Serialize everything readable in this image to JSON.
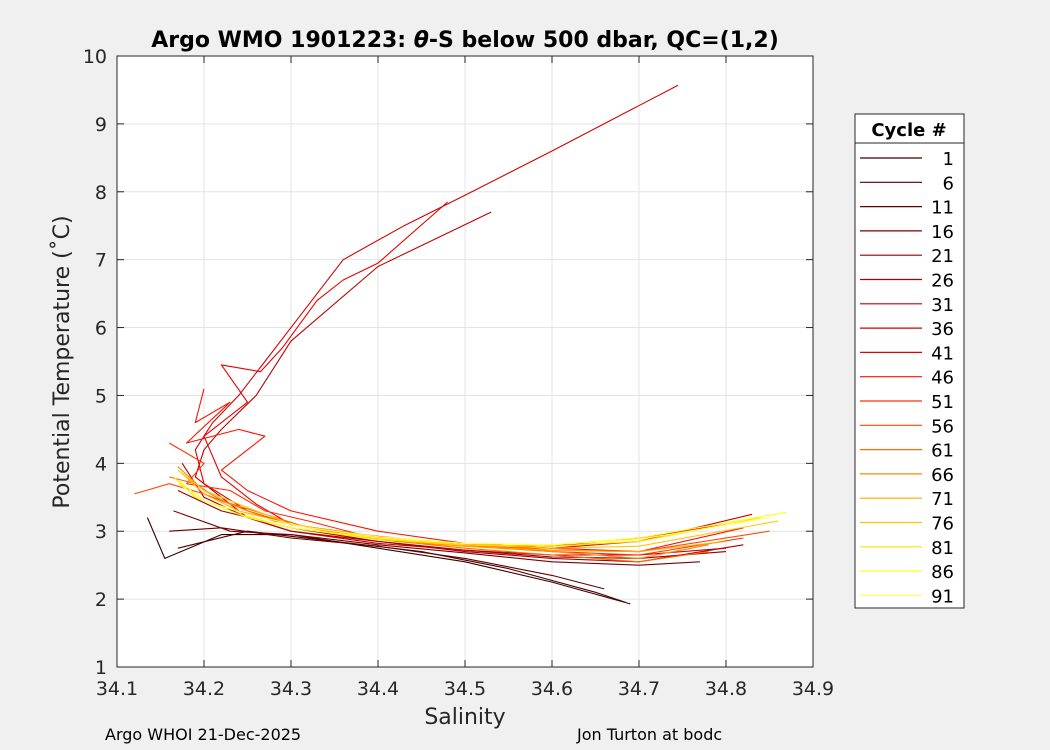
{
  "chart_data": {
    "type": "line",
    "title": "Argo WMO 1901223: θ-S below 500 dbar,  QC=(1,2)",
    "title_parts": {
      "prefix": "Argo WMO 1901223: ",
      "theta": "θ",
      "suffix": "-S below 500 dbar,  QC=(1,2)"
    },
    "xlabel": "Salinity",
    "ylabel": "Potential Temperature (˚C)",
    "xlim": [
      34.1,
      34.9
    ],
    "ylim": [
      1,
      10
    ],
    "xticks": [
      "34.1",
      "34.2",
      "34.3",
      "34.4",
      "34.5",
      "34.6",
      "34.7",
      "34.8",
      "34.9"
    ],
    "yticks": [
      "1",
      "2",
      "3",
      "4",
      "5",
      "6",
      "7",
      "8",
      "9",
      "10"
    ],
    "grid": true,
    "legend_title": "Cycle #",
    "legend_position": "outside-right",
    "colormap": "hot (dark red → red → orange → yellow)",
    "legend_colors": [
      "#3a0000",
      "#500000",
      "#660000",
      "#7c0000",
      "#930000",
      "#aa0000",
      "#c00000",
      "#d60000",
      "#e80000",
      "#ff1000",
      "#ff2e00",
      "#ff4c00",
      "#ff6b00",
      "#ff8a00",
      "#ffa800",
      "#ffc600",
      "#ffe400",
      "#ffff20",
      "#ffff60"
    ],
    "series": [
      {
        "name": "1",
        "x": [
          34.135,
          34.155,
          34.22,
          34.3,
          34.4,
          34.5,
          34.6,
          34.69
        ],
        "y": [
          3.2,
          2.6,
          2.95,
          2.95,
          2.75,
          2.55,
          2.25,
          1.93
        ]
      },
      {
        "name": "6",
        "x": [
          34.17,
          34.25,
          34.35,
          34.45,
          34.55,
          34.65,
          34.685
        ],
        "y": [
          2.75,
          3.0,
          2.85,
          2.7,
          2.45,
          2.1,
          1.95
        ]
      },
      {
        "name": "11",
        "x": [
          34.16,
          34.22,
          34.3,
          34.4,
          34.5,
          34.6,
          34.66
        ],
        "y": [
          3.0,
          3.05,
          2.9,
          2.78,
          2.6,
          2.35,
          2.15
        ]
      },
      {
        "name": "16",
        "x": [
          34.165,
          34.23,
          34.3,
          34.4,
          34.5,
          34.6,
          34.7,
          34.77
        ],
        "y": [
          3.3,
          3.0,
          2.95,
          2.8,
          2.68,
          2.55,
          2.5,
          2.55
        ]
      },
      {
        "name": "21",
        "x": [
          34.17,
          34.22,
          34.3,
          34.4,
          34.5,
          34.6,
          34.7,
          34.8
        ],
        "y": [
          3.6,
          3.3,
          3.05,
          2.85,
          2.72,
          2.62,
          2.6,
          2.7
        ]
      },
      {
        "name": "26",
        "x": [
          34.175,
          34.2,
          34.25,
          34.3,
          34.4,
          34.5,
          34.6,
          34.7,
          34.82
        ],
        "y": [
          4.0,
          3.5,
          3.2,
          3.0,
          2.85,
          2.7,
          2.6,
          2.55,
          2.8
        ]
      },
      {
        "name": "31",
        "x": [
          34.53,
          34.4,
          34.3,
          34.26,
          34.22,
          34.2,
          34.19,
          34.25,
          34.3,
          34.4,
          34.5,
          34.6,
          34.7,
          34.8
        ],
        "y": [
          7.7,
          6.9,
          5.8,
          5.0,
          4.5,
          4.2,
          3.8,
          3.2,
          3.0,
          2.82,
          2.72,
          2.65,
          2.65,
          2.75
        ]
      },
      {
        "name": "36",
        "x": [
          34.745,
          34.6,
          34.5,
          34.43,
          34.36,
          34.3,
          34.27,
          34.24,
          34.21,
          34.19,
          34.2,
          34.25,
          34.3,
          34.4,
          34.5,
          34.6,
          34.7,
          34.83
        ],
        "y": [
          9.57,
          8.6,
          7.95,
          7.5,
          7.0,
          6.0,
          5.5,
          5.0,
          4.6,
          4.2,
          3.7,
          3.3,
          3.1,
          2.9,
          2.78,
          2.75,
          2.85,
          3.25
        ]
      },
      {
        "name": "41",
        "x": [
          34.48,
          34.4,
          34.36,
          34.33,
          34.29,
          34.265,
          34.22,
          34.25,
          34.2,
          34.22,
          34.26,
          34.3,
          34.4,
          34.5,
          34.6,
          34.7,
          34.8
        ],
        "y": [
          7.85,
          6.95,
          6.7,
          6.4,
          5.7,
          5.35,
          5.45,
          4.9,
          4.4,
          3.8,
          3.4,
          3.1,
          2.9,
          2.8,
          2.78,
          2.9,
          3.1
        ]
      },
      {
        "name": "46",
        "x": [
          34.2,
          34.19,
          34.23,
          34.18,
          34.24,
          34.27,
          34.22,
          34.25,
          34.3,
          34.4,
          34.5,
          34.6,
          34.7,
          34.82
        ],
        "y": [
          5.1,
          4.6,
          4.9,
          4.3,
          4.5,
          4.4,
          3.9,
          3.6,
          3.3,
          3.0,
          2.82,
          2.75,
          2.7,
          3.05
        ]
      },
      {
        "name": "51",
        "x": [
          34.16,
          34.2,
          34.18,
          34.23,
          34.27,
          34.32,
          34.38,
          34.5,
          34.6,
          34.7,
          34.82
        ],
        "y": [
          4.3,
          4.0,
          3.7,
          3.6,
          3.3,
          3.15,
          2.95,
          2.8,
          2.7,
          2.65,
          2.9
        ]
      },
      {
        "name": "56",
        "x": [
          34.12,
          34.16,
          34.2,
          34.25,
          34.3,
          34.4,
          34.5,
          34.6,
          34.7,
          34.85
        ],
        "y": [
          3.55,
          3.7,
          3.55,
          3.3,
          3.1,
          2.92,
          2.8,
          2.72,
          2.7,
          3.0
        ]
      },
      {
        "name": "61",
        "x": [
          34.16,
          34.19,
          34.22,
          34.27,
          34.32,
          34.4,
          34.5,
          34.6,
          34.7,
          34.78
        ],
        "y": [
          3.8,
          3.7,
          3.45,
          3.25,
          3.05,
          2.88,
          2.75,
          2.65,
          2.55,
          2.7
        ]
      },
      {
        "name": "66",
        "x": [
          34.17,
          34.2,
          34.23,
          34.28,
          34.35,
          34.42,
          34.5,
          34.6,
          34.7,
          34.78
        ],
        "y": [
          3.95,
          3.6,
          3.4,
          3.15,
          3.0,
          2.85,
          2.78,
          2.7,
          2.6,
          2.8
        ]
      },
      {
        "name": "71",
        "x": [
          34.175,
          34.2,
          34.24,
          34.3,
          34.4,
          34.5,
          34.6,
          34.7,
          34.8
        ],
        "y": [
          3.85,
          3.55,
          3.3,
          3.1,
          2.9,
          2.78,
          2.72,
          2.7,
          2.85
        ]
      },
      {
        "name": "76",
        "x": [
          34.17,
          34.2,
          34.25,
          34.3,
          34.4,
          34.5,
          34.6,
          34.7,
          34.86
        ],
        "y": [
          3.9,
          3.6,
          3.35,
          3.1,
          2.9,
          2.8,
          2.75,
          2.78,
          3.15
        ]
      },
      {
        "name": "81",
        "x": [
          34.165,
          34.19,
          34.24,
          34.3,
          34.4,
          34.5,
          34.6,
          34.7,
          34.84
        ],
        "y": [
          3.8,
          3.5,
          3.25,
          3.05,
          2.88,
          2.8,
          2.78,
          2.85,
          3.2
        ]
      },
      {
        "name": "86",
        "x": [
          34.17,
          34.2,
          34.25,
          34.3,
          34.4,
          34.5,
          34.6,
          34.7,
          34.87
        ],
        "y": [
          3.75,
          3.45,
          3.2,
          3.05,
          2.9,
          2.82,
          2.8,
          2.9,
          3.28
        ]
      },
      {
        "name": "91",
        "x": [
          34.17,
          34.2,
          34.25,
          34.32,
          34.4,
          34.5,
          34.6,
          34.7,
          34.85
        ],
        "y": [
          3.7,
          3.45,
          3.25,
          3.05,
          2.92,
          2.82,
          2.8,
          2.88,
          3.2
        ]
      }
    ]
  },
  "footer": {
    "left": "Argo WHOI 21-Dec-2025",
    "right": "Jon Turton at bodc"
  }
}
